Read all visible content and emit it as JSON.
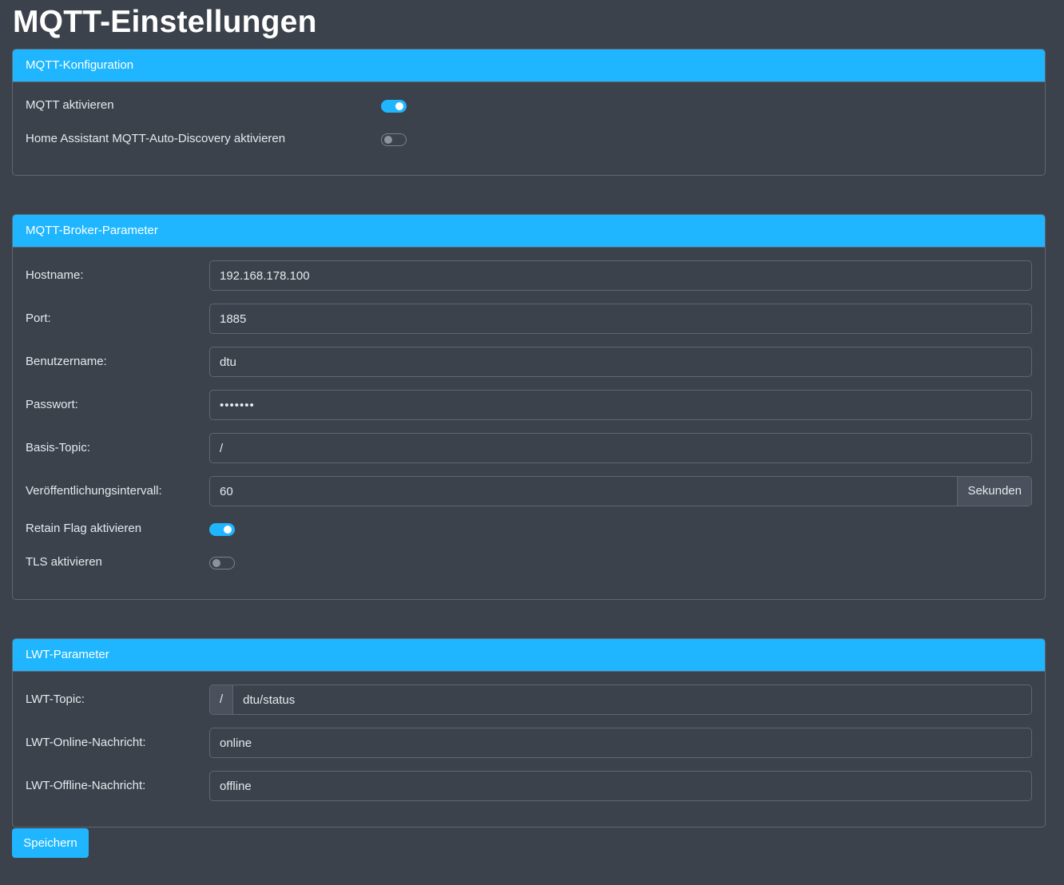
{
  "page": {
    "title": "MQTT-Einstellungen"
  },
  "mqtt_config": {
    "header": "MQTT-Konfiguration",
    "enable_label": "MQTT aktivieren",
    "enable_value": true,
    "ha_discovery_label": "Home Assistant MQTT-Auto-Discovery aktivieren",
    "ha_discovery_value": false
  },
  "broker": {
    "header": "MQTT-Broker-Parameter",
    "hostname_label": "Hostname:",
    "hostname_value": "192.168.178.100",
    "port_label": "Port:",
    "port_value": "1885",
    "username_label": "Benutzername:",
    "username_value": "dtu",
    "password_label": "Passwort:",
    "password_value": "•••••••",
    "base_topic_label": "Basis-Topic:",
    "base_topic_value": "/",
    "interval_label": "Veröffentlichungsintervall:",
    "interval_value": "60",
    "interval_unit": "Sekunden",
    "retain_label": "Retain Flag aktivieren",
    "retain_value": true,
    "tls_label": "TLS aktivieren",
    "tls_value": false
  },
  "lwt": {
    "header": "LWT-Parameter",
    "topic_label": "LWT-Topic:",
    "topic_prefix": "/",
    "topic_value": "dtu/status",
    "online_label": "LWT-Online-Nachricht:",
    "online_value": "online",
    "offline_label": "LWT-Offline-Nachricht:",
    "offline_value": "offline"
  },
  "actions": {
    "save_label": "Speichern"
  },
  "colors": {
    "background": "#3c424c",
    "accent": "#1fb6ff",
    "border": "#5f6672",
    "text": "#e6e9ed"
  }
}
